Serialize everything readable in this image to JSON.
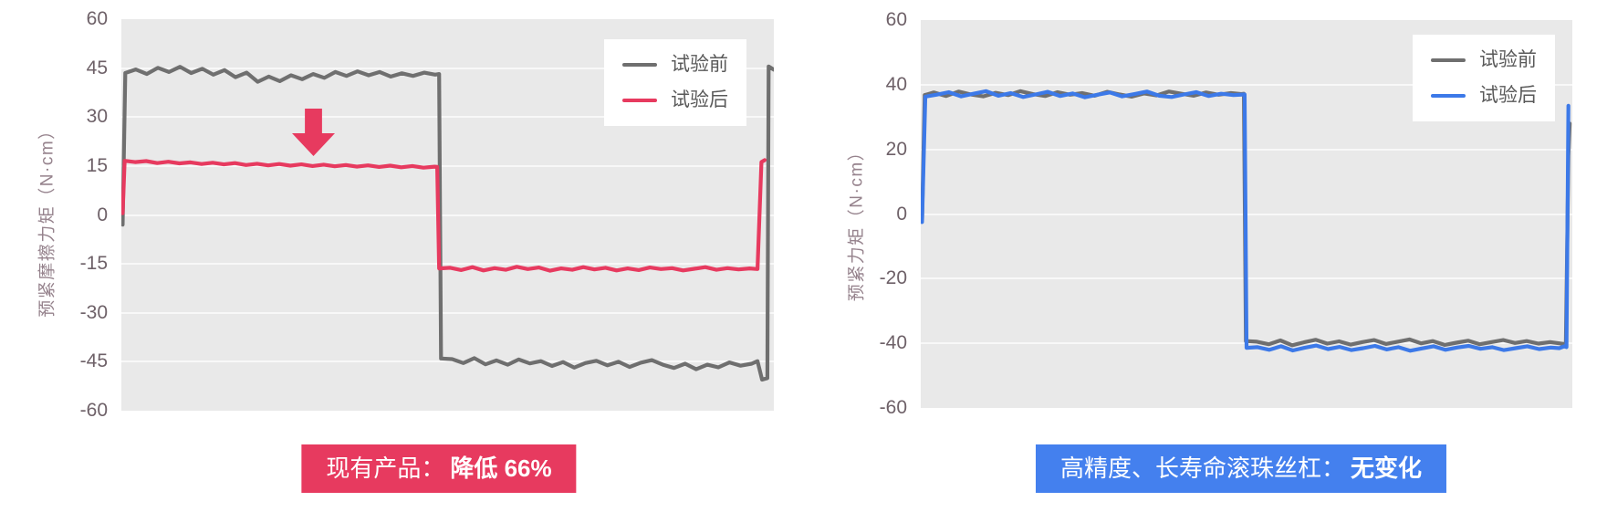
{
  "chart_data": [
    {
      "type": "line",
      "ylabel": "预紧摩擦力矩（N·cm）",
      "ylim": [
        -60,
        60
      ],
      "yticks": [
        60,
        45,
        30,
        15,
        0,
        -15,
        -30,
        -45,
        -60
      ],
      "gridlines": [
        45,
        30,
        15,
        0,
        -15,
        -30,
        -45
      ],
      "legend_position": "top-right",
      "series": [
        {
          "name": "试验前",
          "color": "#6f6f6f",
          "points": [
            [
              0.002,
              -3
            ],
            [
              0.006,
              43.5
            ],
            [
              0.022,
              44.6
            ],
            [
              0.039,
              43.2
            ],
            [
              0.056,
              45.1
            ],
            [
              0.073,
              43.8
            ],
            [
              0.09,
              45.4
            ],
            [
              0.107,
              43.5
            ],
            [
              0.124,
              44.8
            ],
            [
              0.141,
              43.0
            ],
            [
              0.158,
              44.4
            ],
            [
              0.175,
              42.2
            ],
            [
              0.192,
              43.6
            ],
            [
              0.209,
              40.8
            ],
            [
              0.226,
              42.4
            ],
            [
              0.243,
              41.0
            ],
            [
              0.26,
              42.8
            ],
            [
              0.277,
              41.6
            ],
            [
              0.294,
              43.2
            ],
            [
              0.311,
              42.0
            ],
            [
              0.328,
              43.8
            ],
            [
              0.345,
              42.6
            ],
            [
              0.362,
              44.0
            ],
            [
              0.379,
              42.8
            ],
            [
              0.396,
              43.8
            ],
            [
              0.413,
              42.4
            ],
            [
              0.43,
              43.4
            ],
            [
              0.447,
              42.6
            ],
            [
              0.464,
              43.6
            ],
            [
              0.481,
              43.0
            ],
            [
              0.487,
              43.2
            ],
            [
              0.49,
              -44.0
            ],
            [
              0.507,
              -44.2
            ],
            [
              0.524,
              -45.4
            ],
            [
              0.541,
              -43.9
            ],
            [
              0.558,
              -45.8
            ],
            [
              0.575,
              -44.6
            ],
            [
              0.592,
              -45.9
            ],
            [
              0.609,
              -44.3
            ],
            [
              0.626,
              -45.5
            ],
            [
              0.643,
              -44.8
            ],
            [
              0.66,
              -46.3
            ],
            [
              0.677,
              -45.1
            ],
            [
              0.694,
              -46.8
            ],
            [
              0.711,
              -45.4
            ],
            [
              0.728,
              -44.7
            ],
            [
              0.745,
              -46.1
            ],
            [
              0.762,
              -45.0
            ],
            [
              0.779,
              -46.6
            ],
            [
              0.796,
              -45.3
            ],
            [
              0.813,
              -44.5
            ],
            [
              0.83,
              -45.9
            ],
            [
              0.847,
              -46.9
            ],
            [
              0.864,
              -45.6
            ],
            [
              0.881,
              -47.3
            ],
            [
              0.898,
              -45.9
            ],
            [
              0.915,
              -46.7
            ],
            [
              0.932,
              -45.2
            ],
            [
              0.949,
              -46.2
            ],
            [
              0.966,
              -45.6
            ],
            [
              0.975,
              -44.8
            ],
            [
              0.982,
              -50.5
            ],
            [
              0.99,
              -50.0
            ],
            [
              0.992,
              45.5
            ],
            [
              1.0,
              44.5
            ]
          ]
        },
        {
          "name": "试验后",
          "color": "#e73a5f",
          "points": [
            [
              0.002,
              0.5
            ],
            [
              0.005,
              16.6
            ],
            [
              0.021,
              16.2
            ],
            [
              0.038,
              16.5
            ],
            [
              0.055,
              15.9
            ],
            [
              0.072,
              16.3
            ],
            [
              0.089,
              15.8
            ],
            [
              0.106,
              16.1
            ],
            [
              0.123,
              15.6
            ],
            [
              0.14,
              16.0
            ],
            [
              0.157,
              15.5
            ],
            [
              0.174,
              15.9
            ],
            [
              0.191,
              15.3
            ],
            [
              0.208,
              15.7
            ],
            [
              0.225,
              15.2
            ],
            [
              0.242,
              15.6
            ],
            [
              0.259,
              15.1
            ],
            [
              0.276,
              15.5
            ],
            [
              0.293,
              15.0
            ],
            [
              0.31,
              15.4
            ],
            [
              0.327,
              14.9
            ],
            [
              0.344,
              15.3
            ],
            [
              0.361,
              14.8
            ],
            [
              0.378,
              15.2
            ],
            [
              0.395,
              14.7
            ],
            [
              0.412,
              15.1
            ],
            [
              0.429,
              14.6
            ],
            [
              0.446,
              15.0
            ],
            [
              0.463,
              14.5
            ],
            [
              0.48,
              14.8
            ],
            [
              0.484,
              14.7
            ],
            [
              0.487,
              -16.4
            ],
            [
              0.504,
              -16.2
            ],
            [
              0.521,
              -16.9
            ],
            [
              0.538,
              -16.0
            ],
            [
              0.555,
              -17.0
            ],
            [
              0.572,
              -16.3
            ],
            [
              0.589,
              -16.8
            ],
            [
              0.606,
              -15.9
            ],
            [
              0.623,
              -16.6
            ],
            [
              0.64,
              -16.1
            ],
            [
              0.657,
              -17.1
            ],
            [
              0.674,
              -16.4
            ],
            [
              0.691,
              -16.8
            ],
            [
              0.708,
              -16.0
            ],
            [
              0.725,
              -16.7
            ],
            [
              0.742,
              -16.2
            ],
            [
              0.759,
              -17.0
            ],
            [
              0.776,
              -16.4
            ],
            [
              0.793,
              -16.9
            ],
            [
              0.81,
              -16.1
            ],
            [
              0.827,
              -16.6
            ],
            [
              0.844,
              -16.3
            ],
            [
              0.861,
              -17.0
            ],
            [
              0.878,
              -16.5
            ],
            [
              0.895,
              -16.0
            ],
            [
              0.912,
              -16.8
            ],
            [
              0.929,
              -16.3
            ],
            [
              0.946,
              -16.7
            ],
            [
              0.963,
              -16.4
            ],
            [
              0.975,
              -16.6
            ],
            [
              0.981,
              16.2
            ],
            [
              0.986,
              16.8
            ]
          ]
        }
      ],
      "annotation": {
        "icon": "down-arrow",
        "color": "#e73a5f"
      },
      "caption": {
        "prefix": "现有产品：",
        "emphasis": "降低 66%",
        "bg_color": "#e73a5f",
        "text_color": "#ffffff"
      }
    },
    {
      "type": "line",
      "ylabel": "预紧力矩（N·cm）",
      "ylim": [
        -60,
        60
      ],
      "yticks": [
        60,
        40,
        20,
        0,
        -20,
        -40,
        -60
      ],
      "gridlines": [
        40,
        20,
        0,
        -20,
        -40
      ],
      "legend_position": "top-right",
      "series": [
        {
          "name": "试验前",
          "color": "#6f6f6f",
          "points": [
            [
              0.002,
              -2.0
            ],
            [
              0.006,
              36.8
            ],
            [
              0.02,
              37.6
            ],
            [
              0.039,
              36.5
            ],
            [
              0.058,
              37.9
            ],
            [
              0.077,
              37.0
            ],
            [
              0.096,
              36.4
            ],
            [
              0.115,
              37.5
            ],
            [
              0.134,
              36.8
            ],
            [
              0.153,
              38.0
            ],
            [
              0.172,
              37.1
            ],
            [
              0.191,
              36.5
            ],
            [
              0.21,
              37.7
            ],
            [
              0.229,
              36.9
            ],
            [
              0.248,
              37.4
            ],
            [
              0.267,
              36.6
            ],
            [
              0.286,
              37.8
            ],
            [
              0.305,
              37.0
            ],
            [
              0.324,
              36.3
            ],
            [
              0.343,
              37.3
            ],
            [
              0.362,
              36.7
            ],
            [
              0.381,
              37.9
            ],
            [
              0.4,
              37.2
            ],
            [
              0.419,
              36.6
            ],
            [
              0.438,
              37.6
            ],
            [
              0.457,
              36.9
            ],
            [
              0.476,
              37.4
            ],
            [
              0.492,
              37.1
            ],
            [
              0.496,
              37.2
            ],
            [
              0.499,
              -39.3
            ],
            [
              0.516,
              -39.5
            ],
            [
              0.534,
              -40.3
            ],
            [
              0.552,
              -39.1
            ],
            [
              0.57,
              -40.6
            ],
            [
              0.588,
              -39.7
            ],
            [
              0.606,
              -38.9
            ],
            [
              0.624,
              -40.1
            ],
            [
              0.642,
              -39.4
            ],
            [
              0.66,
              -40.4
            ],
            [
              0.678,
              -39.6
            ],
            [
              0.696,
              -39.0
            ],
            [
              0.714,
              -40.2
            ],
            [
              0.732,
              -39.5
            ],
            [
              0.75,
              -38.8
            ],
            [
              0.768,
              -40.0
            ],
            [
              0.786,
              -39.3
            ],
            [
              0.804,
              -40.5
            ],
            [
              0.822,
              -39.8
            ],
            [
              0.84,
              -39.2
            ],
            [
              0.858,
              -40.3
            ],
            [
              0.876,
              -39.6
            ],
            [
              0.894,
              -39.0
            ],
            [
              0.912,
              -39.9
            ],
            [
              0.93,
              -39.3
            ],
            [
              0.948,
              -40.1
            ],
            [
              0.966,
              -39.6
            ],
            [
              0.98,
              -40.0
            ],
            [
              0.99,
              -40.3
            ],
            [
              0.994,
              18.0
            ],
            [
              0.996,
              28.0
            ]
          ]
        },
        {
          "name": "试验后",
          "color": "#3c79e8",
          "points": [
            [
              0.002,
              -2.5
            ],
            [
              0.007,
              36.3
            ],
            [
              0.024,
              36.9
            ],
            [
              0.043,
              37.7
            ],
            [
              0.062,
              36.4
            ],
            [
              0.081,
              37.2
            ],
            [
              0.1,
              38.0
            ],
            [
              0.119,
              36.6
            ],
            [
              0.138,
              37.4
            ],
            [
              0.157,
              36.2
            ],
            [
              0.176,
              37.0
            ],
            [
              0.195,
              37.8
            ],
            [
              0.214,
              36.5
            ],
            [
              0.233,
              37.3
            ],
            [
              0.252,
              36.1
            ],
            [
              0.271,
              36.9
            ],
            [
              0.29,
              37.6
            ],
            [
              0.309,
              36.4
            ],
            [
              0.328,
              37.1
            ],
            [
              0.347,
              37.9
            ],
            [
              0.366,
              36.6
            ],
            [
              0.385,
              36.2
            ],
            [
              0.404,
              37.0
            ],
            [
              0.423,
              37.7
            ],
            [
              0.442,
              36.5
            ],
            [
              0.461,
              37.2
            ],
            [
              0.48,
              36.8
            ],
            [
              0.497,
              37.0
            ],
            [
              0.5,
              -41.4
            ],
            [
              0.517,
              -41.2
            ],
            [
              0.535,
              -42.0
            ],
            [
              0.553,
              -40.9
            ],
            [
              0.571,
              -42.2
            ],
            [
              0.589,
              -41.4
            ],
            [
              0.607,
              -40.7
            ],
            [
              0.625,
              -41.8
            ],
            [
              0.643,
              -41.1
            ],
            [
              0.661,
              -42.1
            ],
            [
              0.679,
              -41.5
            ],
            [
              0.697,
              -40.8
            ],
            [
              0.715,
              -41.9
            ],
            [
              0.733,
              -41.2
            ],
            [
              0.751,
              -42.3
            ],
            [
              0.769,
              -41.6
            ],
            [
              0.787,
              -40.9
            ],
            [
              0.805,
              -42.0
            ],
            [
              0.823,
              -41.3
            ],
            [
              0.841,
              -40.8
            ],
            [
              0.859,
              -41.7
            ],
            [
              0.877,
              -41.2
            ],
            [
              0.895,
              -42.1
            ],
            [
              0.913,
              -41.5
            ],
            [
              0.931,
              -40.9
            ],
            [
              0.949,
              -41.8
            ],
            [
              0.967,
              -41.3
            ],
            [
              0.98,
              -41.5
            ],
            [
              0.988,
              -40.9
            ],
            [
              0.991,
              -41.2
            ],
            [
              0.994,
              33.5
            ]
          ]
        }
      ],
      "caption": {
        "prefix": "高精度、长寿命滚珠丝杠：",
        "emphasis": "无变化",
        "bg_color": "#4480ee",
        "text_color": "#ffffff"
      }
    }
  ]
}
